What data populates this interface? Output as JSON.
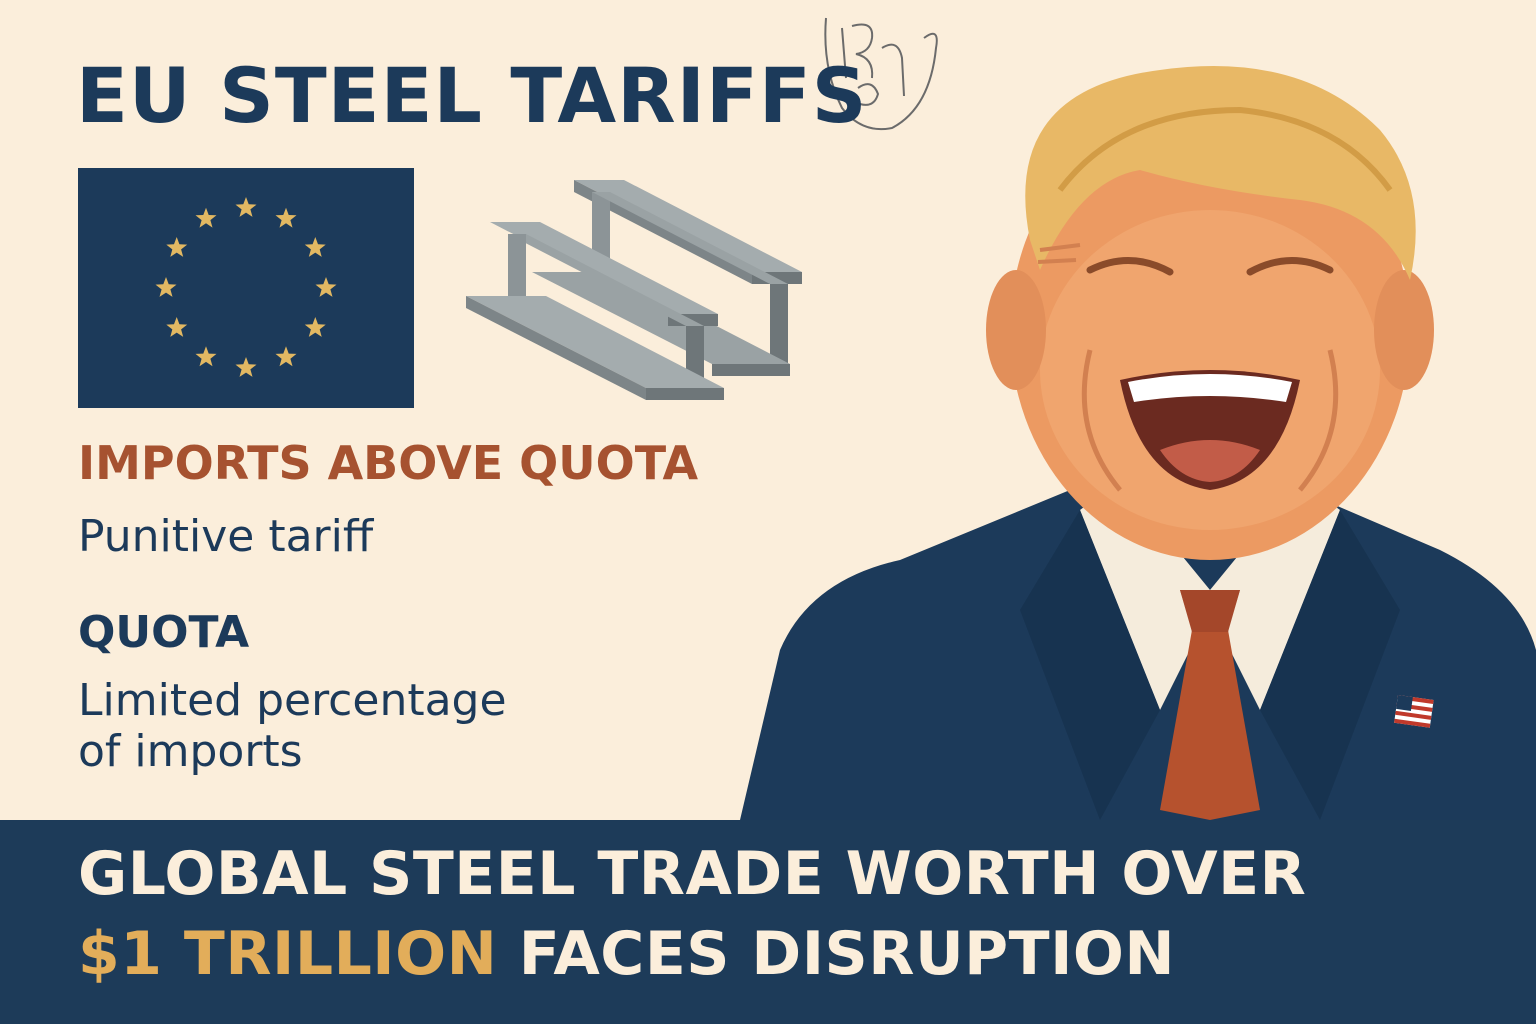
{
  "header": {
    "title": "EU STEEL TARIFFS"
  },
  "left_panel": {
    "above_quota_label": "IMPORTS ABOVE QUOTA",
    "above_quota_desc": "Punitive tariff",
    "quota_label": "QUOTA",
    "quota_desc_line1": "Limited percentage",
    "quota_desc_line2": "of imports"
  },
  "banner": {
    "line1": "GLOBAL STEEL TRADE WORTH OVER",
    "line2_highlight": "$1 TRILLION",
    "line2_rest": " FACES DISRUPTION"
  },
  "icons": [
    "eu-flag-icon",
    "steel-beams-icon",
    "us-flag-pin-icon"
  ],
  "colors": {
    "background": "#FBEEDB",
    "navy": "#1C3A5A",
    "accent_orange": "#A65230",
    "gold": "#E2AD5A",
    "steel": "#8C9497"
  }
}
